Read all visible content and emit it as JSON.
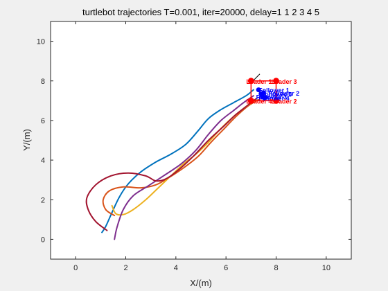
{
  "chart_data": {
    "type": "line",
    "title": "turtlebot trajectories T=0.001, iter=20000, delay=1  1  2  3  4  5",
    "xlabel": "X/(m)",
    "ylabel": "Y/(m)",
    "xlim": [
      -1,
      11
    ],
    "ylim": [
      -1,
      11
    ],
    "xticks": [
      "0",
      "2",
      "4",
      "6",
      "8",
      "10"
    ],
    "yticks": [
      "0",
      "2",
      "4",
      "6",
      "8",
      "10"
    ],
    "xtick_values": [
      0,
      2,
      4,
      6,
      8,
      10
    ],
    "ytick_values": [
      0,
      2,
      4,
      6,
      8,
      10
    ],
    "grid": false,
    "series": [
      {
        "color": "#0072bd",
        "x": [
          1.05,
          1.2,
          1.45,
          1.75,
          2.1,
          2.6,
          3.2,
          3.8,
          4.4,
          4.9,
          5.3,
          5.8,
          6.3,
          6.8,
          7.1
        ],
        "y": [
          0.35,
          0.65,
          1.35,
          2.15,
          2.8,
          3.4,
          3.9,
          4.3,
          4.8,
          5.5,
          6.1,
          6.55,
          6.9,
          7.25,
          7.55
        ]
      },
      {
        "color": "#d95319",
        "x": [
          1.55,
          1.2,
          1.1,
          1.35,
          1.9,
          2.6,
          3.2,
          3.7,
          4.3,
          4.9,
          5.4,
          5.9,
          6.4,
          6.9,
          7.3
        ],
        "y": [
          1.2,
          1.5,
          2.0,
          2.45,
          2.65,
          2.6,
          2.75,
          3.1,
          3.6,
          4.2,
          4.9,
          5.55,
          6.2,
          6.75,
          7.05
        ]
      },
      {
        "color": "#edb120",
        "x": [
          1.45,
          1.6,
          1.9,
          2.3,
          2.8,
          3.3,
          3.8,
          4.3,
          4.8,
          5.3,
          5.8,
          6.3,
          6.8,
          7.2
        ],
        "y": [
          1.7,
          1.3,
          1.25,
          1.5,
          2.0,
          2.6,
          3.2,
          3.8,
          4.3,
          4.9,
          5.6,
          6.2,
          6.7,
          7.05
        ]
      },
      {
        "color": "#7e2f8e",
        "x": [
          1.55,
          1.65,
          1.9,
          2.3,
          2.9,
          3.5,
          4.2,
          4.8,
          5.3,
          5.8,
          6.3,
          6.7,
          7.1
        ],
        "y": [
          0.0,
          0.6,
          1.5,
          2.2,
          2.7,
          3.2,
          3.8,
          4.5,
          5.3,
          6.0,
          6.5,
          6.9,
          7.25
        ]
      },
      {
        "color": "#a2142f",
        "x": [
          1.25,
          0.8,
          0.5,
          0.45,
          0.8,
          1.4,
          2.1,
          2.8,
          3.2,
          3.6,
          4.1,
          4.7,
          5.3,
          5.9,
          6.4,
          6.9,
          7.2
        ],
        "y": [
          0.45,
          0.9,
          1.5,
          2.1,
          2.75,
          3.2,
          3.35,
          3.2,
          2.95,
          3.05,
          3.5,
          4.2,
          5.0,
          5.7,
          6.3,
          6.8,
          7.1
        ]
      }
    ],
    "leaders": {
      "color": "#ff0000",
      "points": [
        [
          7.0,
          8.0
        ],
        [
          8.0,
          8.0
        ],
        [
          8.0,
          7.0
        ],
        [
          7.0,
          7.0
        ]
      ],
      "labels": [
        {
          "text": "Leader 1",
          "x": 7.0,
          "y": 8.0
        },
        {
          "text": "Leader 3",
          "x": 8.0,
          "y": 8.0
        },
        {
          "text": "Leader 2",
          "x": 8.0,
          "y": 7.0
        },
        {
          "text": "Leader 4",
          "x": 7.0,
          "y": 7.0
        }
      ]
    },
    "followers": {
      "color": "#0000ff",
      "points": [
        [
          7.3,
          7.55
        ],
        [
          7.5,
          7.4
        ],
        [
          7.45,
          7.2
        ],
        [
          7.55,
          7.15
        ],
        [
          7.4,
          7.35
        ]
      ],
      "labels": [
        {
          "text": "Follower 1",
          "x": 7.3,
          "y": 7.55
        },
        {
          "text": "Follower 2",
          "x": 7.7,
          "y": 7.4
        },
        {
          "text": "Follower 3",
          "x": 7.2,
          "y": 7.2
        },
        {
          "text": "Follower 4",
          "x": 7.3,
          "y": 7.15
        },
        {
          "text": "Follower 5",
          "x": 7.4,
          "y": 7.35
        }
      ]
    },
    "heading_line": {
      "color": "#000000",
      "x": [
        7.0,
        7.35
      ],
      "y": [
        7.9,
        8.35
      ]
    }
  }
}
